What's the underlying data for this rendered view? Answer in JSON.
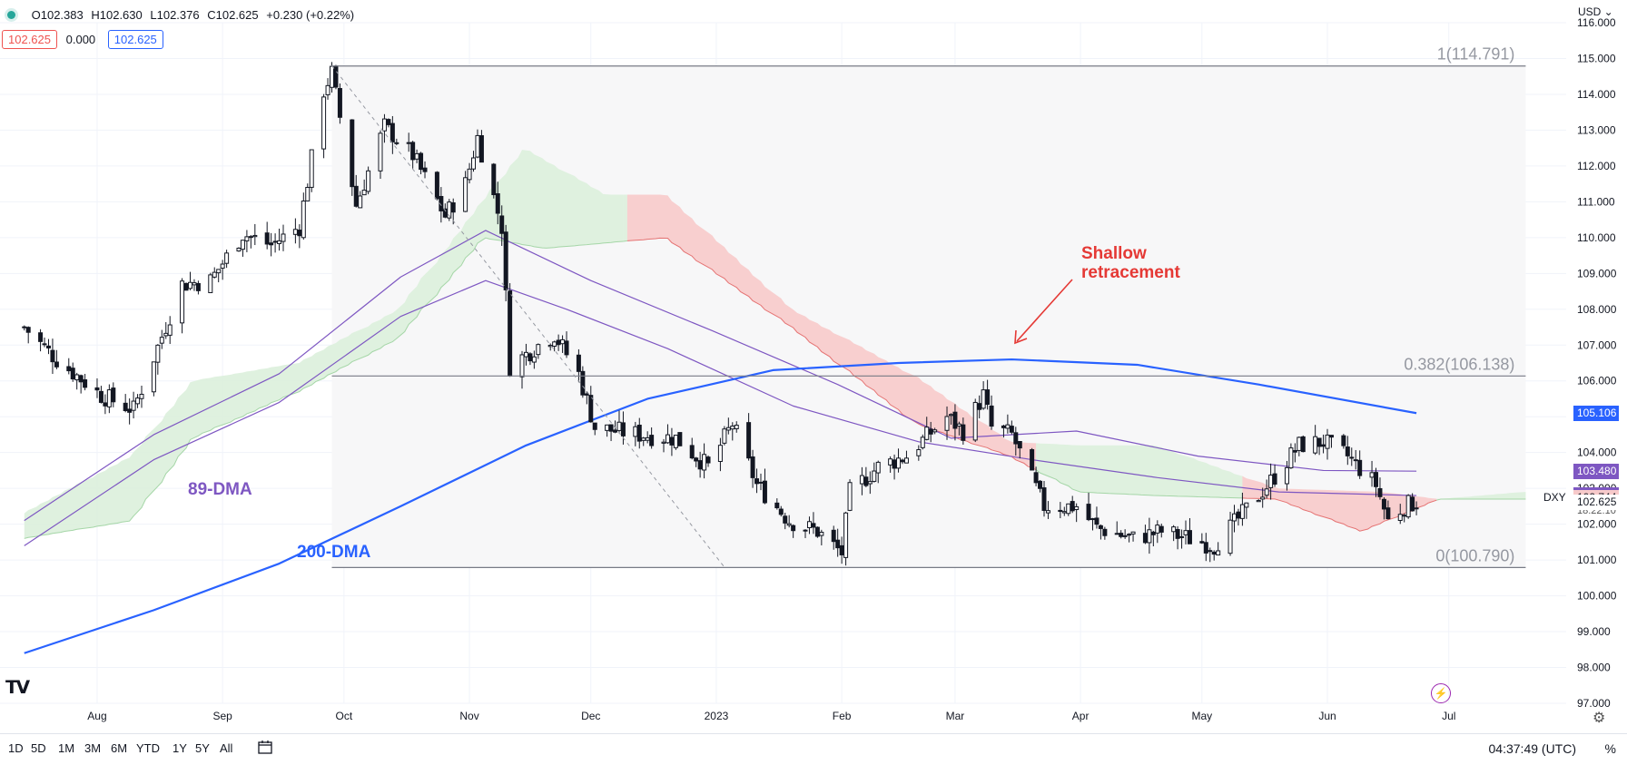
{
  "header": {
    "ohlc": {
      "open": "O102.383",
      "high": "H102.630",
      "low": "L102.376",
      "close": "C102.625",
      "change": "+0.230 (+0.22%)"
    },
    "box_left": "102.625",
    "box_mid": "0.000",
    "box_right": "102.625",
    "currency": "USD"
  },
  "symbol_label": "DXY",
  "countdown": "18:22:10",
  "bottom": {
    "ranges": [
      "1D",
      "5D",
      "1M",
      "3M",
      "6M",
      "YTD",
      "1Y",
      "5Y",
      "All"
    ],
    "time": "04:37:49 (UTC)",
    "percent": "%"
  },
  "colors": {
    "up_cloud": "#dcefdc",
    "down_cloud": "#f7caca",
    "ma200": "#2962ff",
    "ma89": "#7e57c2",
    "candle": "#131722",
    "grid": "#f0f3fa",
    "annotation": "#e53935"
  },
  "chart_data": {
    "type": "candlestick",
    "instrument": "DXY",
    "ylim": [
      97.0,
      116.0
    ],
    "y_ticks": [
      116,
      115,
      114,
      113,
      112,
      111,
      110,
      109,
      108,
      107,
      106,
      105,
      104,
      103,
      102,
      101,
      100,
      99,
      98,
      97
    ],
    "x_ticks": [
      {
        "label": "Aug",
        "date": "2022-08-01"
      },
      {
        "label": "Sep",
        "date": "2022-09-01"
      },
      {
        "label": "Oct",
        "date": "2022-10-01"
      },
      {
        "label": "Nov",
        "date": "2022-11-01"
      },
      {
        "label": "Dec",
        "date": "2022-12-01"
      },
      {
        "label": "2023",
        "date": "2023-01-01"
      },
      {
        "label": "Feb",
        "date": "2023-02-01"
      },
      {
        "label": "Mar",
        "date": "2023-03-01"
      },
      {
        "label": "Apr",
        "date": "2023-04-01"
      },
      {
        "label": "May",
        "date": "2023-05-01"
      },
      {
        "label": "Jun",
        "date": "2023-06-01"
      },
      {
        "label": "Jul",
        "date": "2023-07-01"
      }
    ],
    "close_path": [
      {
        "date": "2022-07-14",
        "close": 107.5
      },
      {
        "date": "2022-07-22",
        "close": 106.6
      },
      {
        "date": "2022-08-02",
        "close": 105.6
      },
      {
        "date": "2022-08-10",
        "close": 105.2
      },
      {
        "date": "2022-08-22",
        "close": 108.7
      },
      {
        "date": "2022-08-29",
        "close": 108.8
      },
      {
        "date": "2022-09-06",
        "close": 110.1
      },
      {
        "date": "2022-09-13",
        "close": 109.8
      },
      {
        "date": "2022-09-20",
        "close": 110.3
      },
      {
        "date": "2022-09-26",
        "close": 114.1
      },
      {
        "date": "2022-09-28",
        "close": 114.6
      },
      {
        "date": "2022-10-04",
        "close": 110.9
      },
      {
        "date": "2022-10-11",
        "close": 113.1
      },
      {
        "date": "2022-10-18",
        "close": 112.3
      },
      {
        "date": "2022-10-26",
        "close": 110.6
      },
      {
        "date": "2022-10-31",
        "close": 111.5
      },
      {
        "date": "2022-11-03",
        "close": 112.8
      },
      {
        "date": "2022-11-09",
        "close": 110.3
      },
      {
        "date": "2022-11-11",
        "close": 106.4
      },
      {
        "date": "2022-11-18",
        "close": 107.0
      },
      {
        "date": "2022-11-22",
        "close": 107.3
      },
      {
        "date": "2022-11-28",
        "close": 106.2
      },
      {
        "date": "2022-12-02",
        "close": 104.7
      },
      {
        "date": "2022-12-13",
        "close": 104.5
      },
      {
        "date": "2022-12-22",
        "close": 104.4
      },
      {
        "date": "2022-12-30",
        "close": 103.6
      },
      {
        "date": "2023-01-05",
        "close": 104.8
      },
      {
        "date": "2023-01-11",
        "close": 103.1
      },
      {
        "date": "2023-01-19",
        "close": 102.1
      },
      {
        "date": "2023-01-26",
        "close": 101.8
      },
      {
        "date": "2023-02-01",
        "close": 101.2
      },
      {
        "date": "2023-02-03",
        "close": 102.9
      },
      {
        "date": "2023-02-10",
        "close": 103.6
      },
      {
        "date": "2023-02-17",
        "close": 103.9
      },
      {
        "date": "2023-02-27",
        "close": 105.0
      },
      {
        "date": "2023-03-03",
        "close": 104.6
      },
      {
        "date": "2023-03-08",
        "close": 105.6
      },
      {
        "date": "2023-03-10",
        "close": 104.7
      },
      {
        "date": "2023-03-15",
        "close": 104.5
      },
      {
        "date": "2023-03-23",
        "close": 102.5
      },
      {
        "date": "2023-03-31",
        "close": 102.5
      },
      {
        "date": "2023-04-05",
        "close": 101.9
      },
      {
        "date": "2023-04-14",
        "close": 101.6
      },
      {
        "date": "2023-04-21",
        "close": 101.8
      },
      {
        "date": "2023-04-28",
        "close": 101.6
      },
      {
        "date": "2023-05-04",
        "close": 101.4
      },
      {
        "date": "2023-05-12",
        "close": 102.4
      },
      {
        "date": "2023-05-18",
        "close": 103.2
      },
      {
        "date": "2023-05-25",
        "close": 104.2
      },
      {
        "date": "2023-05-31",
        "close": 104.3
      },
      {
        "date": "2023-06-06",
        "close": 103.9
      },
      {
        "date": "2023-06-13",
        "close": 103.1
      },
      {
        "date": "2023-06-16",
        "close": 102.1
      },
      {
        "date": "2023-06-20",
        "close": 102.5
      },
      {
        "date": "2023-06-23",
        "close": 102.625
      }
    ],
    "ma200": [
      {
        "date": "2022-07-14",
        "v": 98.4
      },
      {
        "date": "2022-08-15",
        "v": 99.6
      },
      {
        "date": "2022-09-15",
        "v": 100.9
      },
      {
        "date": "2022-10-15",
        "v": 102.5
      },
      {
        "date": "2022-11-15",
        "v": 104.2
      },
      {
        "date": "2022-12-15",
        "v": 105.5
      },
      {
        "date": "2023-01-15",
        "v": 106.3
      },
      {
        "date": "2023-02-15",
        "v": 106.5
      },
      {
        "date": "2023-03-15",
        "v": 106.6
      },
      {
        "date": "2023-04-15",
        "v": 106.45
      },
      {
        "date": "2023-05-15",
        "v": 105.9
      },
      {
        "date": "2023-06-23",
        "v": 105.1
      }
    ],
    "ma89": [
      {
        "date": "2022-07-14",
        "v": 101.4
      },
      {
        "date": "2022-08-15",
        "v": 103.8
      },
      {
        "date": "2022-09-15",
        "v": 105.4
      },
      {
        "date": "2022-10-15",
        "v": 107.8
      },
      {
        "date": "2022-11-05",
        "v": 108.8
      },
      {
        "date": "2022-11-25",
        "v": 108.0
      },
      {
        "date": "2022-12-20",
        "v": 106.9
      },
      {
        "date": "2023-01-20",
        "v": 105.3
      },
      {
        "date": "2023-02-20",
        "v": 104.3
      },
      {
        "date": "2023-03-20",
        "v": 103.8
      },
      {
        "date": "2023-04-20",
        "v": 103.3
      },
      {
        "date": "2023-05-20",
        "v": 102.9
      },
      {
        "date": "2023-06-23",
        "v": 102.8
      }
    ],
    "ma_short": [
      {
        "date": "2022-07-14",
        "v": 102.1
      },
      {
        "date": "2022-08-15",
        "v": 104.5
      },
      {
        "date": "2022-09-15",
        "v": 106.2
      },
      {
        "date": "2022-10-15",
        "v": 108.9
      },
      {
        "date": "2022-11-05",
        "v": 110.2
      },
      {
        "date": "2022-12-01",
        "v": 108.8
      },
      {
        "date": "2022-12-31",
        "v": 107.4
      },
      {
        "date": "2023-01-31",
        "v": 105.9
      },
      {
        "date": "2023-02-28",
        "v": 104.4
      },
      {
        "date": "2023-03-31",
        "v": 104.6
      },
      {
        "date": "2023-04-30",
        "v": 103.9
      },
      {
        "date": "2023-05-31",
        "v": 103.5
      },
      {
        "date": "2023-06-23",
        "v": 103.48
      }
    ],
    "cloud_top": [
      {
        "date": "2022-07-14",
        "v": 102.3
      },
      {
        "date": "2022-08-10",
        "v": 103.9
      },
      {
        "date": "2022-08-25",
        "v": 106.0
      },
      {
        "date": "2022-09-20",
        "v": 106.5
      },
      {
        "date": "2022-10-15",
        "v": 108.0
      },
      {
        "date": "2022-11-15",
        "v": 112.5
      },
      {
        "date": "2022-12-05",
        "v": 111.2
      },
      {
        "date": "2022-12-20",
        "v": 111.2
      },
      {
        "date": "2023-01-20",
        "v": 108.0
      },
      {
        "date": "2023-02-20",
        "v": 106.1
      },
      {
        "date": "2023-03-15",
        "v": 104.3
      },
      {
        "date": "2023-04-01",
        "v": 104.2
      },
      {
        "date": "2023-04-20",
        "v": 104.2
      },
      {
        "date": "2023-05-20",
        "v": 103.0
      },
      {
        "date": "2023-06-15",
        "v": 102.9
      },
      {
        "date": "2023-06-29",
        "v": 102.7
      },
      {
        "date": "2023-07-20",
        "v": 102.9
      }
    ],
    "cloud_bottom": [
      {
        "date": "2022-07-14",
        "v": 101.6
      },
      {
        "date": "2022-08-10",
        "v": 102.1
      },
      {
        "date": "2022-08-25",
        "v": 104.4
      },
      {
        "date": "2022-09-20",
        "v": 105.7
      },
      {
        "date": "2022-10-15",
        "v": 107.2
      },
      {
        "date": "2022-11-05",
        "v": 110.0
      },
      {
        "date": "2022-11-20",
        "v": 109.7
      },
      {
        "date": "2022-12-20",
        "v": 110.0
      },
      {
        "date": "2023-01-20",
        "v": 107.5
      },
      {
        "date": "2023-02-20",
        "v": 104.8
      },
      {
        "date": "2023-03-15",
        "v": 103.9
      },
      {
        "date": "2023-04-01",
        "v": 102.9
      },
      {
        "date": "2023-04-20",
        "v": 102.8
      },
      {
        "date": "2023-05-20",
        "v": 102.7
      },
      {
        "date": "2023-06-10",
        "v": 101.8
      },
      {
        "date": "2023-06-29",
        "v": 102.7
      },
      {
        "date": "2023-07-20",
        "v": 102.7
      }
    ],
    "fib_levels": [
      {
        "label": "1(114.791)",
        "value": 114.791
      },
      {
        "label": "0.382(106.138)",
        "value": 106.138
      },
      {
        "label": "0(100.790)",
        "value": 100.79
      }
    ],
    "fib_range": {
      "from_date": "2022-09-28",
      "to_date": "2023-07-20"
    },
    "trend_line": {
      "from": {
        "date": "2022-09-28",
        "v": 114.8
      },
      "to": {
        "date": "2023-01-03",
        "v": 100.8
      }
    },
    "price_labels": [
      {
        "text": "105.106",
        "value": 105.106,
        "bg": "#2962ff",
        "fg": "#ffffff"
      },
      {
        "text": "103.480",
        "value": 103.48,
        "bg": "#7e57c2",
        "fg": "#ffffff"
      },
      {
        "text": "102.824",
        "value": 102.824,
        "bg": "#7e57c2",
        "fg": "#ffffff"
      },
      {
        "text": "102.744",
        "value": 102.744,
        "bg": "#f7caca",
        "fg": "#131722"
      },
      {
        "text": "102.625",
        "value": 102.625,
        "bg": "#ffffff",
        "fg": "#131722"
      }
    ],
    "annotations": [
      {
        "text": "89-DMA",
        "color": "#7e57c2"
      },
      {
        "text": "200-DMA",
        "color": "#2962ff"
      },
      {
        "text": "Shallow",
        "color": "#e53935"
      },
      {
        "text": "retracement",
        "color": "#e53935"
      }
    ]
  }
}
